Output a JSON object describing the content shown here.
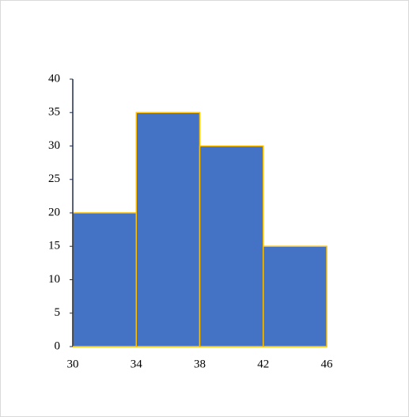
{
  "chart_data": {
    "type": "histogram",
    "bins": [
      30,
      34,
      38,
      42,
      46
    ],
    "values": [
      20,
      35,
      30,
      15
    ],
    "color": "#4472c4",
    "edge_color": "#ffc000",
    "xlim": [
      30,
      46
    ],
    "xticks": [
      30,
      34,
      38,
      42,
      46
    ],
    "ylim": [
      0,
      40
    ],
    "yticks": [
      0,
      5,
      10,
      15,
      20,
      25,
      30,
      35,
      40
    ],
    "grid": false
  }
}
